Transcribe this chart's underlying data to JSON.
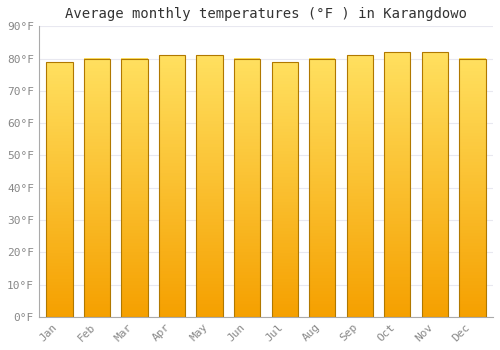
{
  "title": "Average monthly temperatures (°F ) in Karangdowo",
  "months": [
    "Jan",
    "Feb",
    "Mar",
    "Apr",
    "May",
    "Jun",
    "Jul",
    "Aug",
    "Sep",
    "Oct",
    "Nov",
    "Dec"
  ],
  "values": [
    79,
    80,
    80,
    81,
    81,
    80,
    79,
    80,
    81,
    82,
    82,
    80
  ],
  "ylim": [
    0,
    90
  ],
  "yticks": [
    0,
    10,
    20,
    30,
    40,
    50,
    60,
    70,
    80,
    90
  ],
  "bar_color_bottom": "#F5A000",
  "bar_color_top": "#FFE060",
  "bar_edge_color": "#B07800",
  "background_color": "#FFFFFF",
  "plot_bg_color": "#FFFFFF",
  "grid_color": "#E8E8F0",
  "title_color": "#333333",
  "tick_label_color": "#888888",
  "title_fontsize": 10,
  "tick_fontsize": 8,
  "bar_width": 0.7
}
